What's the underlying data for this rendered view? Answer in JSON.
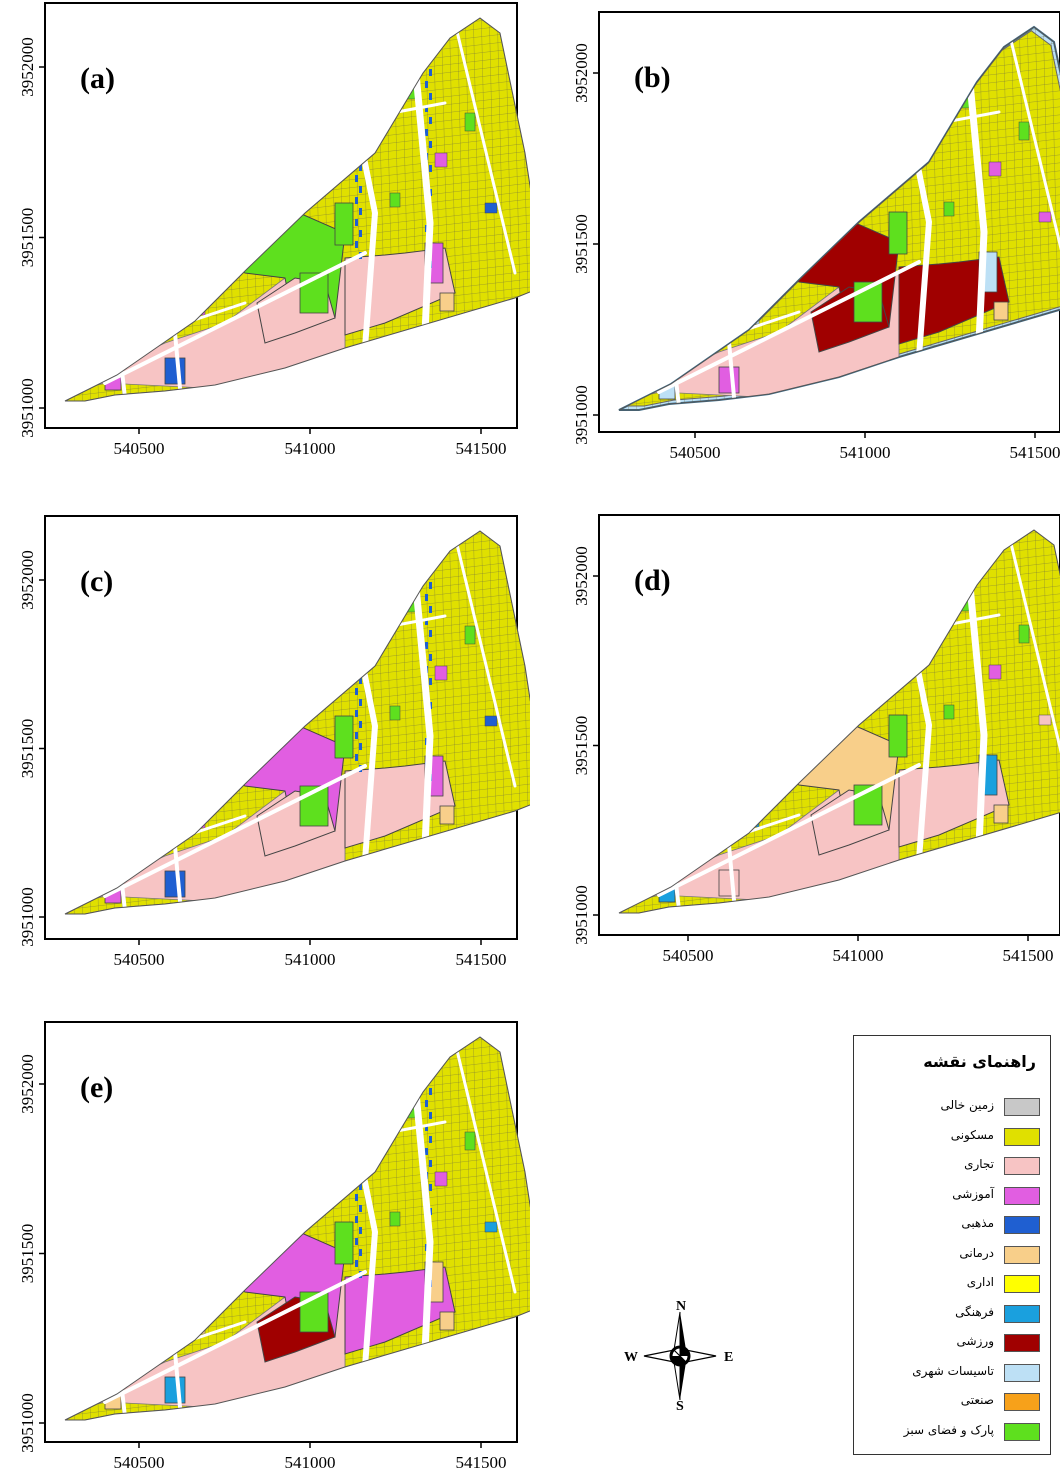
{
  "panels": [
    {
      "id": "a",
      "label": "(a)"
    },
    {
      "id": "b",
      "label": "(b)"
    },
    {
      "id": "c",
      "label": "(c)"
    },
    {
      "id": "d",
      "label": "(d)"
    },
    {
      "id": "e",
      "label": "(e)"
    }
  ],
  "axes": {
    "x_ticks": [
      "540500",
      "541000",
      "541500"
    ],
    "y_ticks": [
      "3951000",
      "3951500",
      "3952000"
    ]
  },
  "legend": {
    "title": "راهنمای نقشه",
    "items": [
      {
        "key": "vacant",
        "label": "زمین خالی",
        "color": "#c8c8c8"
      },
      {
        "key": "residential",
        "label": "مسکونی",
        "color": "#e0e000"
      },
      {
        "key": "commercial",
        "label": "تجاری",
        "color": "#f7c4c4"
      },
      {
        "key": "educational",
        "label": "آموزشی",
        "color": "#e15ee1"
      },
      {
        "key": "religious",
        "label": "مذهبی",
        "color": "#1f5fd1"
      },
      {
        "key": "medical",
        "label": "درمانی",
        "color": "#f8cf8a"
      },
      {
        "key": "administrative",
        "label": "اداری",
        "color": "#ffff00"
      },
      {
        "key": "cultural",
        "label": "فرهنگی",
        "color": "#1aa0de"
      },
      {
        "key": "sports",
        "label": "ورزشی",
        "color": "#a00000"
      },
      {
        "key": "utilities",
        "label": "تاسیسات شهری",
        "color": "#bde0f5"
      },
      {
        "key": "industrial",
        "label": "صنعتی",
        "color": "#f7a11a"
      },
      {
        "key": "park",
        "label": "پارک و فضای سبز",
        "color": "#5ee01e"
      }
    ]
  },
  "compass": {
    "n": "N",
    "s": "S",
    "e": "E",
    "w": "W"
  }
}
